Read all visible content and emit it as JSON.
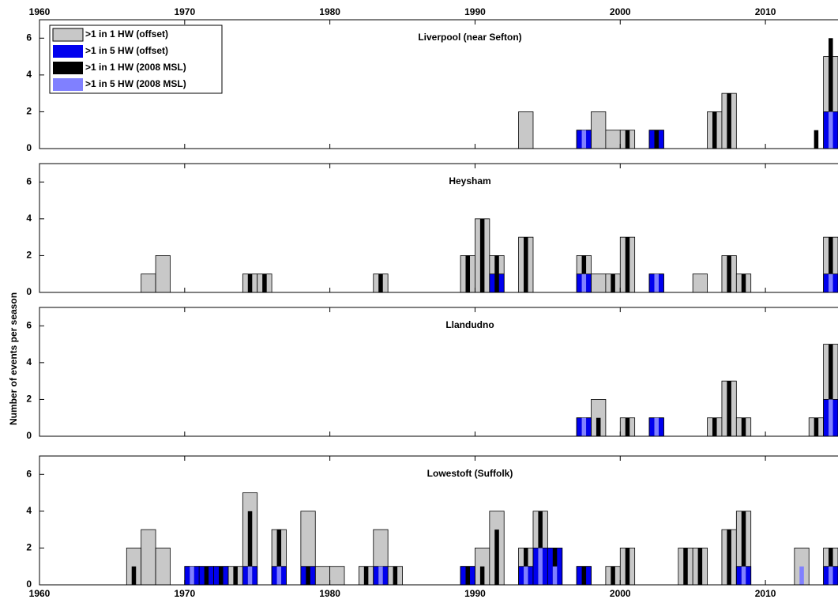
{
  "chart_data": [
    {
      "type": "bar",
      "title": "Liverpool (near Sefton)",
      "xlim": [
        1960,
        2015
      ],
      "xticks": [
        1960,
        1970,
        1980,
        1990,
        2000,
        2010
      ],
      "ylim": [
        0,
        7
      ],
      "yticks": [
        0,
        2,
        4,
        6
      ],
      "legend": "upper left",
      "x": [
        1993,
        1997,
        1998,
        1999,
        2000,
        2002,
        2006,
        2007,
        2013,
        2014
      ],
      "series": [
        {
          "name": ">1 in 1 HW (offset)",
          "color": "#c8c8c8",
          "values": [
            2,
            1,
            2,
            1,
            1,
            1,
            2,
            3,
            0,
            5
          ]
        },
        {
          "name": ">1 in 5 HW (offset)",
          "color": "#0000ee",
          "values": [
            0,
            1,
            0,
            0,
            0,
            1,
            0,
            0,
            0,
            2
          ]
        },
        {
          "name": ">1 in 1 HW (2008 MSL)",
          "color": "#000000",
          "values": [
            0,
            1,
            0,
            0,
            1,
            1,
            2,
            3,
            1,
            6
          ]
        },
        {
          "name": ">1 in 5 HW (2008 MSL)",
          "color": "#8080ff",
          "values": [
            0,
            1,
            0,
            0,
            0,
            0,
            0,
            0,
            0,
            2
          ]
        }
      ]
    },
    {
      "type": "bar",
      "title": "Heysham",
      "xlim": [
        1960,
        2015
      ],
      "xticks": [
        1960,
        1970,
        1980,
        1990,
        2000,
        2010
      ],
      "ylim": [
        0,
        7
      ],
      "yticks": [
        0,
        2,
        4,
        6
      ],
      "x": [
        1967,
        1968,
        1974,
        1975,
        1983,
        1989,
        1990,
        1991,
        1993,
        1997,
        1998,
        1999,
        2000,
        2002,
        2005,
        2007,
        2008,
        2014
      ],
      "series": [
        {
          "color": "#c8c8c8",
          "values": [
            1,
            2,
            1,
            1,
            1,
            2,
            4,
            2,
            3,
            2,
            1,
            1,
            3,
            1,
            1,
            2,
            1,
            3
          ]
        },
        {
          "color": "#0000ee",
          "values": [
            0,
            0,
            0,
            0,
            0,
            0,
            0,
            1,
            0,
            1,
            0,
            0,
            0,
            1,
            0,
            0,
            0,
            1
          ]
        },
        {
          "color": "#000000",
          "values": [
            0,
            0,
            1,
            1,
            1,
            2,
            4,
            2,
            3,
            2,
            0,
            1,
            3,
            1,
            0,
            2,
            1,
            3
          ]
        },
        {
          "color": "#8080ff",
          "values": [
            0,
            0,
            0,
            0,
            0,
            0,
            0,
            0,
            0,
            1,
            0,
            0,
            0,
            1,
            0,
            0,
            0,
            1
          ]
        }
      ]
    },
    {
      "type": "bar",
      "title": "Llandudno",
      "ylabel": "Number of events per season",
      "xlim": [
        1960,
        2015
      ],
      "xticks": [
        1960,
        1970,
        1980,
        1990,
        2000,
        2010
      ],
      "ylim": [
        0,
        7
      ],
      "yticks": [
        0,
        2,
        4,
        6
      ],
      "x": [
        1997,
        1998,
        2000,
        2002,
        2006,
        2007,
        2008,
        2013,
        2014
      ],
      "series": [
        {
          "color": "#c8c8c8",
          "values": [
            1,
            2,
            1,
            1,
            1,
            3,
            1,
            1,
            5
          ]
        },
        {
          "color": "#0000ee",
          "values": [
            1,
            0,
            0,
            1,
            0,
            0,
            0,
            0,
            2
          ]
        },
        {
          "color": "#000000",
          "values": [
            1,
            1,
            1,
            1,
            1,
            3,
            1,
            1,
            5
          ]
        },
        {
          "color": "#8080ff",
          "values": [
            1,
            0,
            0,
            1,
            0,
            0,
            0,
            0,
            2
          ]
        }
      ]
    },
    {
      "type": "bar",
      "title": "Lowestoft (Suffolk)",
      "xlim": [
        1960,
        2015
      ],
      "xticks": [
        1960,
        1970,
        1980,
        1990,
        2000,
        2010
      ],
      "ylim": [
        0,
        7
      ],
      "yticks": [
        0,
        2,
        4,
        6
      ],
      "x": [
        1966,
        1967,
        1968,
        1970,
        1971,
        1972,
        1973,
        1974,
        1976,
        1978,
        1979,
        1980,
        1982,
        1983,
        1984,
        1989,
        1990,
        1991,
        1993,
        1994,
        1995,
        1997,
        1999,
        2000,
        2004,
        2005,
        2007,
        2008,
        2012,
        2014
      ],
      "series": [
        {
          "color": "#c8c8c8",
          "values": [
            2,
            3,
            2,
            1,
            1,
            1,
            1,
            5,
            3,
            4,
            1,
            1,
            1,
            3,
            1,
            1,
            2,
            4,
            2,
            4,
            2,
            1,
            1,
            2,
            2,
            2,
            3,
            4,
            2,
            2
          ]
        },
        {
          "color": "#0000ee",
          "values": [
            0,
            0,
            0,
            1,
            1,
            1,
            0,
            1,
            1,
            1,
            0,
            0,
            0,
            1,
            0,
            1,
            0,
            0,
            1,
            2,
            2,
            1,
            0,
            0,
            0,
            0,
            0,
            1,
            0,
            1
          ]
        },
        {
          "color": "#000000",
          "values": [
            1,
            0,
            0,
            1,
            1,
            1,
            1,
            4,
            3,
            1,
            0,
            0,
            1,
            1,
            1,
            1,
            1,
            3,
            2,
            4,
            2,
            1,
            1,
            2,
            2,
            2,
            3,
            4,
            0,
            2
          ]
        },
        {
          "color": "#8080ff",
          "values": [
            0,
            0,
            0,
            1,
            0,
            0,
            0,
            1,
            1,
            0,
            0,
            0,
            0,
            1,
            0,
            0,
            0,
            0,
            1,
            2,
            1,
            0,
            0,
            0,
            0,
            0,
            0,
            1,
            1,
            1
          ]
        }
      ]
    }
  ]
}
